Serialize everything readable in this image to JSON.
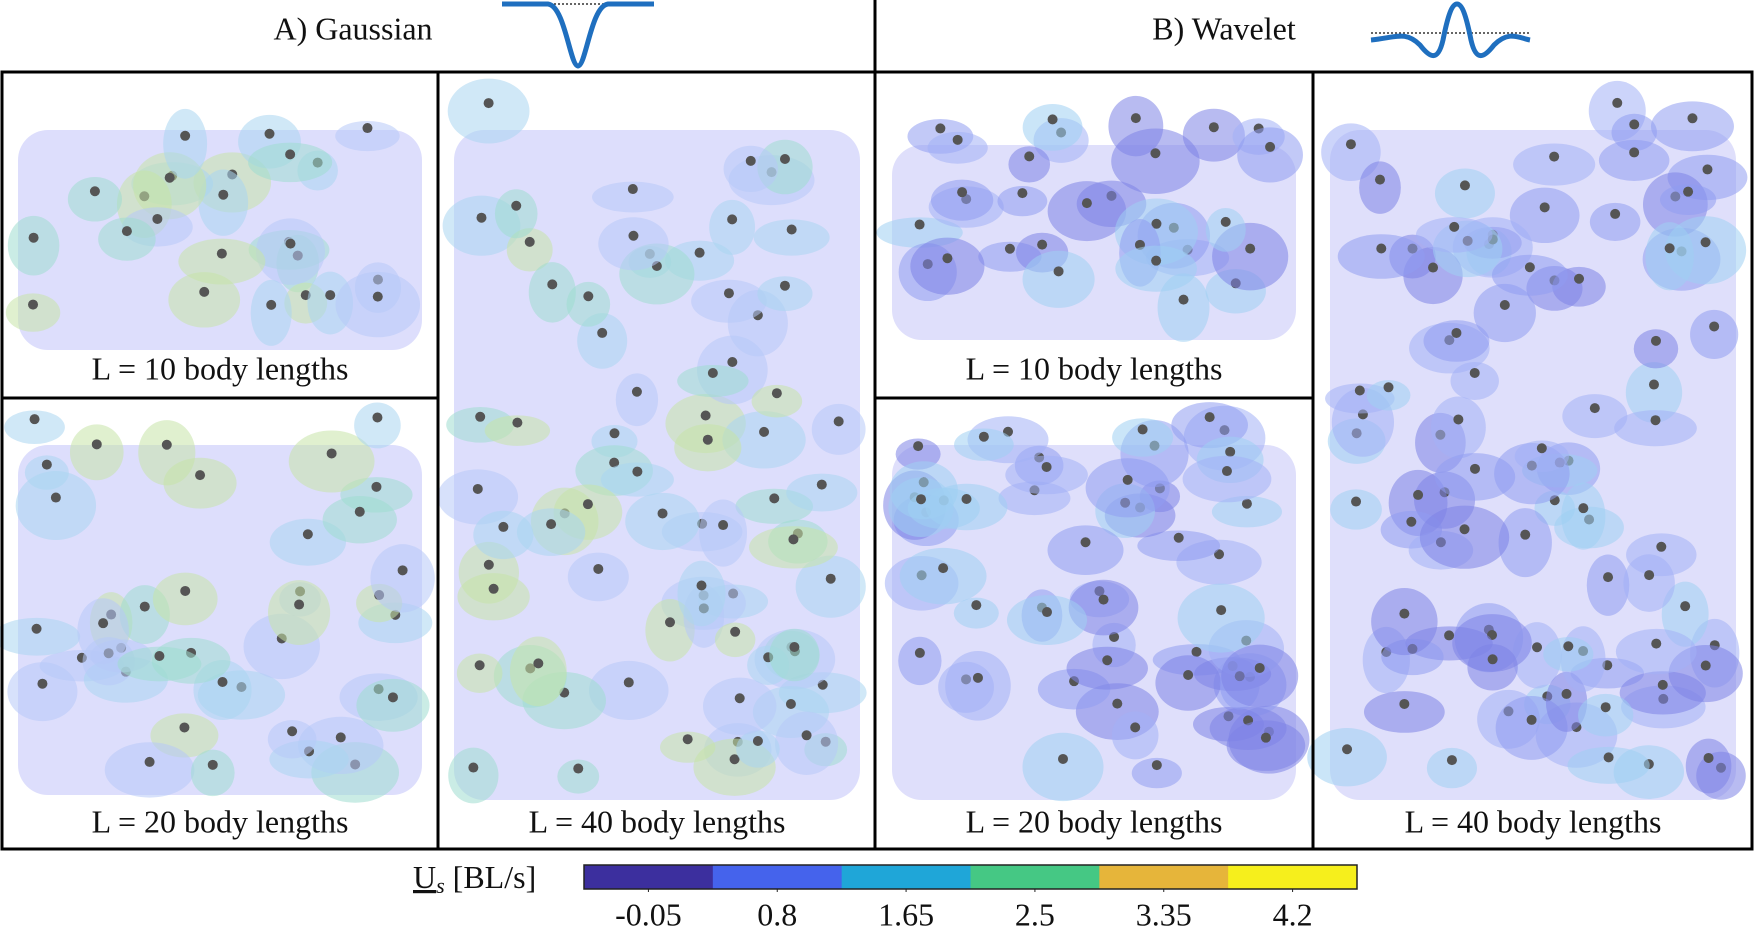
{
  "header": {
    "left_title": "A) Gaussian",
    "right_title": "B) Wavelet"
  },
  "panels": [
    {
      "label": "L = 10 body lengths"
    },
    {
      "label": "L = 20 body lengths"
    },
    {
      "label": "L = 40 body lengths"
    },
    {
      "label": "L = 10 body lengths"
    },
    {
      "label": "L = 20 body lengths"
    },
    {
      "label": "L = 40 body lengths"
    }
  ],
  "colorbar": {
    "symbol": "U",
    "subscript": "s",
    "unit": "[BL/s]",
    "clim": [
      -0.475,
      4.625
    ],
    "colors": [
      "#3c2f9e",
      "#4563ec",
      "#1fa6d8",
      "#45c884",
      "#e6b53a",
      "#f6ef1c"
    ],
    "ticks": [
      -0.05,
      0.8,
      1.65,
      2.5,
      3.35,
      4.2
    ]
  }
}
